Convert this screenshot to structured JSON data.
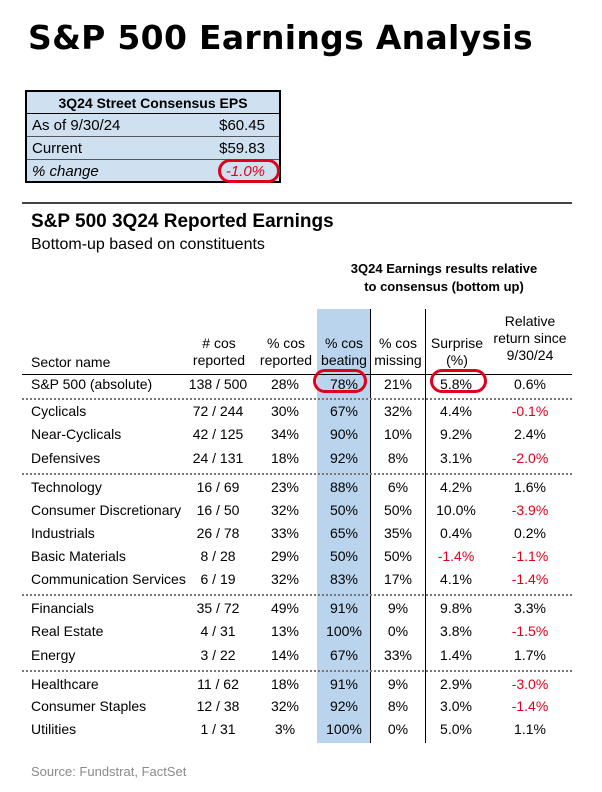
{
  "title": "S&P 500 Earnings Analysis",
  "eps_box": {
    "header": "3Q24 Street Consensus EPS",
    "rows": [
      {
        "label": "As of 9/30/24",
        "value": "$60.45"
      },
      {
        "label": "Current",
        "value": "$59.83"
      },
      {
        "label": "% change",
        "value": "-1.0%"
      }
    ]
  },
  "section": {
    "title": "S&P 500 3Q24 Reported Earnings",
    "subtitle": "Bottom-up based on constituents",
    "group_header_line1": "3Q24 Earnings results relative",
    "group_header_line2": "to consensus (bottom up)"
  },
  "columns": {
    "sector": [
      "Sector name"
    ],
    "reported": [
      "# cos",
      "reported"
    ],
    "pct_reported": [
      "% cos",
      "reported"
    ],
    "pct_beating": [
      "% cos",
      "beating"
    ],
    "pct_missing": [
      "% cos",
      "missing"
    ],
    "surprise": [
      "Surprise",
      "(%)"
    ],
    "relative_return": [
      "Relative",
      "return since",
      "9/30/24"
    ]
  },
  "chart_data": {
    "type": "table",
    "title": "S&P 500 3Q24 Reported Earnings",
    "subtitle": "Bottom-up based on constituents",
    "column_labels": [
      "Sector name",
      "# cos reported",
      "% cos reported",
      "% cos beating",
      "% cos missing",
      "Surprise (%)",
      "Relative return since 9/30/24"
    ],
    "rows": [
      [
        "S&P 500 (absolute)",
        "138 / 500",
        "28%",
        "78%",
        "21%",
        "5.8%",
        "0.6%"
      ],
      [
        "Cyclicals",
        "72 / 244",
        "30%",
        "67%",
        "32%",
        "4.4%",
        "-0.1%"
      ],
      [
        "Near-Cyclicals",
        "42 / 125",
        "34%",
        "90%",
        "10%",
        "9.2%",
        "2.4%"
      ],
      [
        "Defensives",
        "24 / 131",
        "18%",
        "92%",
        "8%",
        "3.1%",
        "-2.0%"
      ],
      [
        "Technology",
        "16 / 69",
        "23%",
        "88%",
        "6%",
        "4.2%",
        "1.6%"
      ],
      [
        "Consumer Discretionary",
        "16 / 50",
        "32%",
        "50%",
        "50%",
        "10.0%",
        "-3.9%"
      ],
      [
        "Industrials",
        "26 / 78",
        "33%",
        "65%",
        "35%",
        "0.4%",
        "0.2%"
      ],
      [
        "Basic Materials",
        "8 / 28",
        "29%",
        "50%",
        "50%",
        "-1.4%",
        "-1.1%"
      ],
      [
        "Communication Services",
        "6 / 19",
        "32%",
        "83%",
        "17%",
        "4.1%",
        "-1.4%"
      ],
      [
        "Financials",
        "35 / 72",
        "49%",
        "91%",
        "9%",
        "9.8%",
        "3.3%"
      ],
      [
        "Real Estate",
        "4 / 31",
        "13%",
        "100%",
        "0%",
        "3.8%",
        "-1.5%"
      ],
      [
        "Energy",
        "3 / 22",
        "14%",
        "67%",
        "33%",
        "1.4%",
        "1.7%"
      ],
      [
        "Healthcare",
        "11 / 62",
        "18%",
        "91%",
        "9%",
        "2.9%",
        "-3.0%"
      ],
      [
        "Consumer Staples",
        "12 / 38",
        "32%",
        "92%",
        "8%",
        "3.0%",
        "-1.4%"
      ],
      [
        "Utilities",
        "1 / 31",
        "3%",
        "100%",
        "0%",
        "5.0%",
        "1.1%"
      ]
    ],
    "group_breaks_after_row": [
      0,
      3,
      8,
      11
    ],
    "highlighted_column": "% cos beating",
    "circled_cells": [
      {
        "row": 0,
        "column": "% cos beating"
      },
      {
        "row": 0,
        "column": "Surprise (%)"
      }
    ]
  },
  "colors": {
    "negative": "#e0001b",
    "highlight": "#b9d4ec",
    "box_fill": "#cfe0f1"
  },
  "source": "Source: Fundstrat, FactSet"
}
